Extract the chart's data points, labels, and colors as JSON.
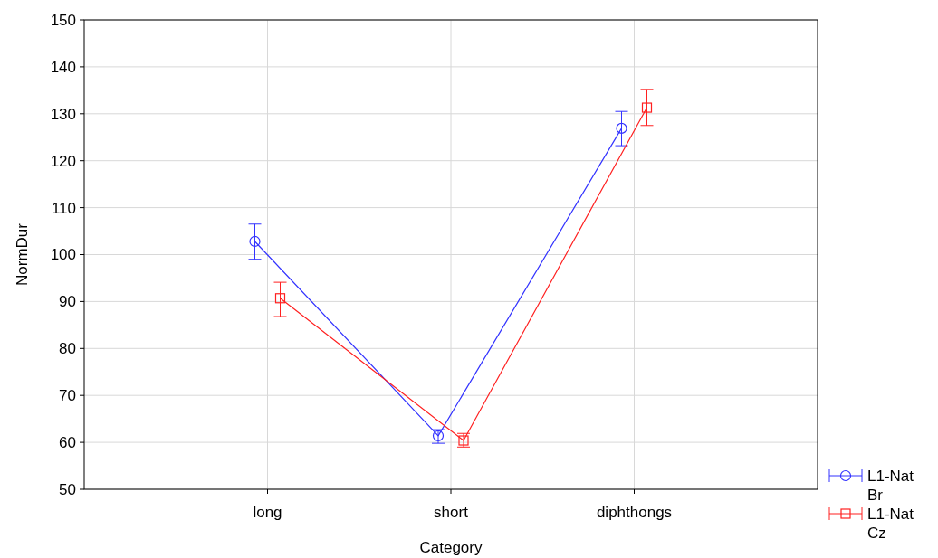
{
  "chart_data": {
    "type": "line",
    "xlabel": "Category",
    "ylabel": "NormDur",
    "categories": [
      "long",
      "short",
      "diphthongs"
    ],
    "ylim": [
      50,
      150
    ],
    "yticks": [
      50,
      60,
      70,
      80,
      90,
      100,
      110,
      120,
      130,
      140,
      150
    ],
    "grid": true,
    "legend": "bottom right",
    "line_style": "solid",
    "series": [
      {
        "name": "L1-Nat Br",
        "color": "#3333ff",
        "marker": "circle",
        "values": [
          102.8,
          61.4,
          126.9
        ],
        "errors": [
          [
            99,
            106.5
          ],
          [
            59.8,
            62.7
          ],
          [
            123.2,
            130.5
          ]
        ]
      },
      {
        "name": "L1-Nat Cz",
        "color": "#ff2020",
        "marker": "square",
        "values": [
          90.7,
          60.4,
          131.3
        ],
        "errors": [
          [
            86.8,
            94.1
          ],
          [
            59,
            61.9
          ],
          [
            127.5,
            135.2
          ]
        ]
      }
    ]
  }
}
